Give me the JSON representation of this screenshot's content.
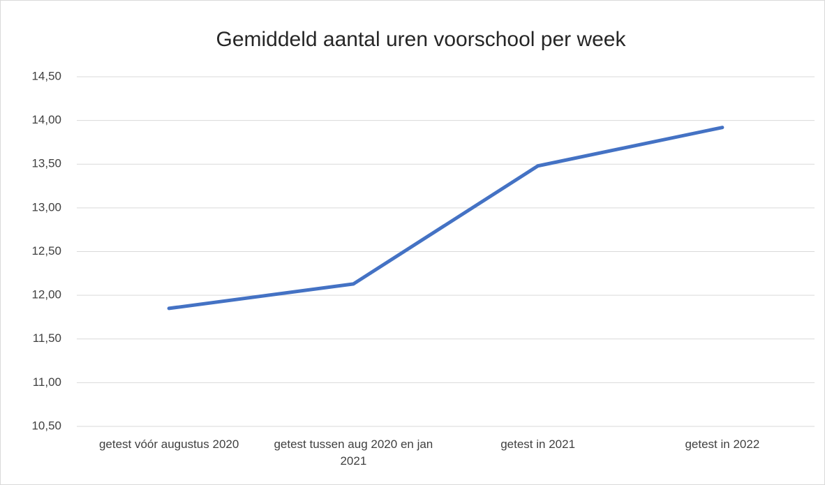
{
  "chart_data": {
    "type": "line",
    "title": "Gemiddeld aantal uren voorschool per week",
    "categories": [
      "getest vóór augustus 2020",
      "getest tussen aug 2020 en jan 2021",
      "getest in 2021",
      "getest in 2022"
    ],
    "series": [
      {
        "name": "Gemiddeld aantal uren voorschool per week",
        "color": "#4472c4",
        "values": [
          11.85,
          12.13,
          13.48,
          13.92
        ]
      }
    ],
    "ylim": [
      10.5,
      14.5
    ],
    "yticks": [
      {
        "value": 10.5,
        "label": "10,50"
      },
      {
        "value": 11,
        "label": "11,00"
      },
      {
        "value": 11.5,
        "label": "11,50"
      },
      {
        "value": 12,
        "label": "12,00"
      },
      {
        "value": 12.5,
        "label": "12,50"
      },
      {
        "value": 13,
        "label": "13,00"
      },
      {
        "value": 13.5,
        "label": "13,50"
      },
      {
        "value": 14,
        "label": "14,00"
      },
      {
        "value": 14.5,
        "label": "14,50"
      }
    ],
    "grid": true,
    "legend": false
  }
}
